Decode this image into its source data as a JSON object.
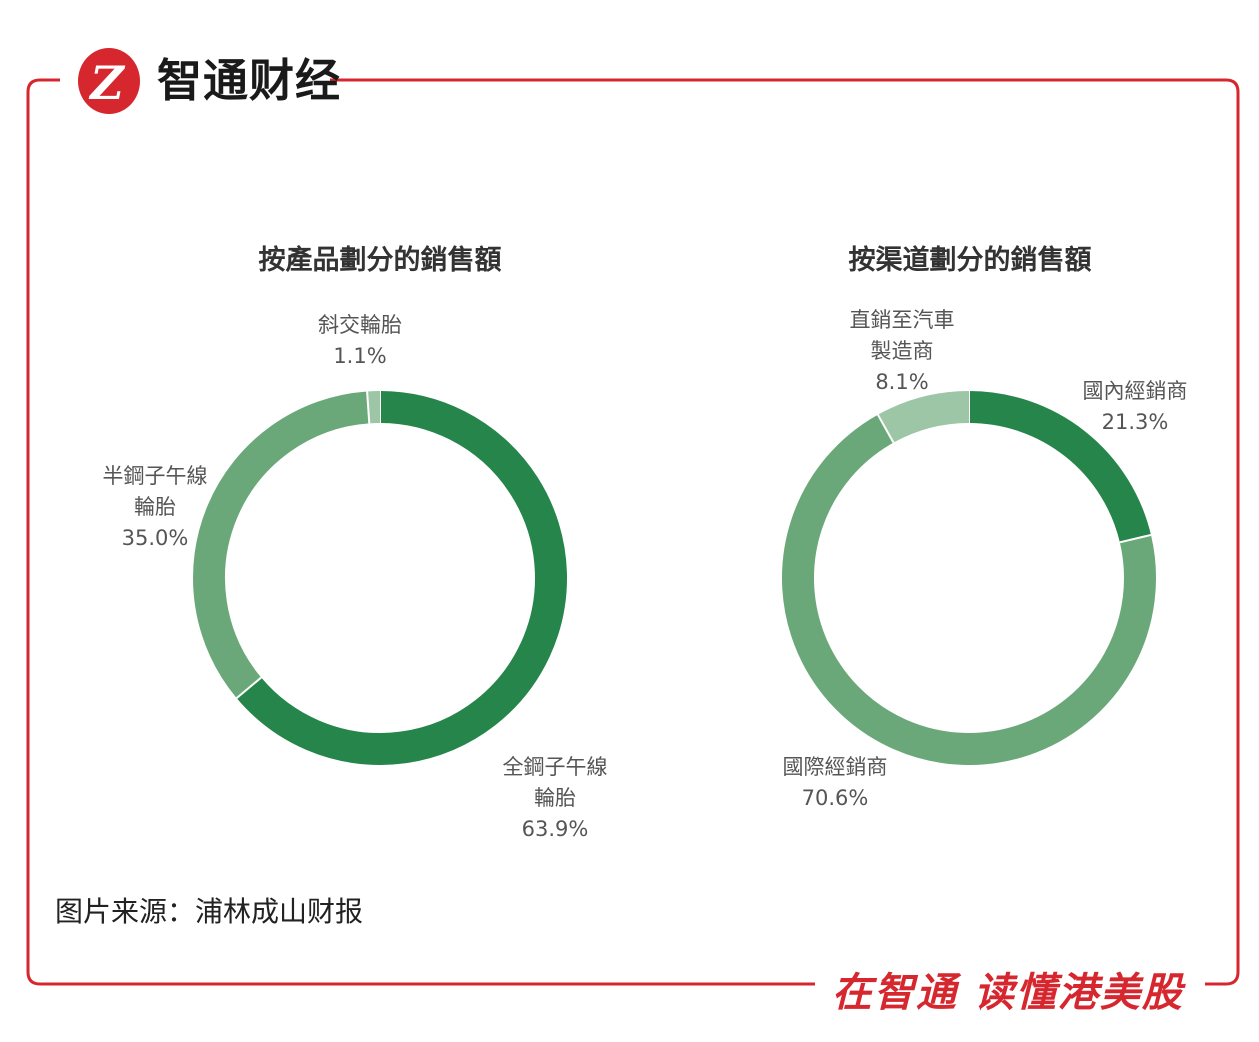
{
  "brand": {
    "name": "智通财经",
    "logo_icon": "zhitong-logo-icon",
    "accent": "#d6272f"
  },
  "slogan": "在智通 读懂港美股",
  "source": "图片来源：浦林成山财报",
  "colors": {
    "dark_green": "#25854a",
    "mid_green": "#6aa879",
    "light_green": "#9cc6a5"
  },
  "chart_data": [
    {
      "type": "pie",
      "donut": true,
      "title": "按產品劃分的銷售額",
      "slices": [
        {
          "name_lines": [
            "全鋼子午線",
            "輪胎"
          ],
          "value": 63.9,
          "label": "63.9%",
          "color": "#25854a"
        },
        {
          "name_lines": [
            "半鋼子午線",
            "輪胎"
          ],
          "value": 35.0,
          "label": "35.0%",
          "color": "#6aa879"
        },
        {
          "name_lines": [
            "斜交輪胎"
          ],
          "value": 1.1,
          "label": "1.1%",
          "color": "#9cc6a5"
        }
      ]
    },
    {
      "type": "pie",
      "donut": true,
      "title": "按渠道劃分的銷售額",
      "slices": [
        {
          "name_lines": [
            "國內經銷商"
          ],
          "value": 21.3,
          "label": "21.3%",
          "color": "#25854a"
        },
        {
          "name_lines": [
            "國際經銷商"
          ],
          "value": 70.6,
          "label": "70.6%",
          "color": "#6aa879"
        },
        {
          "name_lines": [
            "直銷至汽車",
            "製造商"
          ],
          "value": 8.1,
          "label": "8.1%",
          "color": "#9cc6a5"
        }
      ]
    }
  ]
}
